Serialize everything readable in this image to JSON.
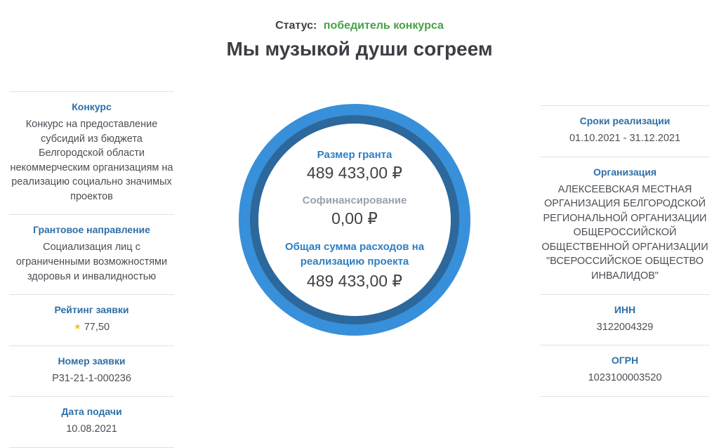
{
  "status": {
    "label": "Статус:",
    "value": "победитель конкурса"
  },
  "title": "Мы музыкой души согреем",
  "left_sidebar": {
    "sections": [
      {
        "heading": "Конкурс",
        "value": "Конкурс на предоставление субсидий из бюджета Белгородской области некоммерческим организациям на реализацию социально значимых проектов"
      },
      {
        "heading": "Грантовое направление",
        "value": "Социализация лиц с ограниченными возможностями здоровья и инвалидностью"
      },
      {
        "heading": "Рейтинг заявки",
        "icon": "star-icon",
        "star_glyph": "★",
        "value": "77,50"
      },
      {
        "heading": "Номер заявки",
        "value": "Р31-21-1-000236"
      },
      {
        "heading": "Дата подачи",
        "value": "10.08.2021"
      }
    ]
  },
  "right_sidebar": {
    "sections": [
      {
        "heading": "Сроки реализации",
        "value": "01.10.2021 - 31.12.2021"
      },
      {
        "heading": "Организация",
        "value": "АЛЕКСЕЕВСКАЯ МЕСТНАЯ ОРГАНИЗАЦИЯ БЕЛГОРОДСКОЙ РЕГИОНАЛЬНОЙ ОРГАНИЗАЦИИ ОБЩЕРОССИЙСКОЙ ОБЩЕСТВЕННОЙ ОРГАНИЗАЦИИ \"ВСЕРОССИЙСКОЕ ОБЩЕСТВО ИНВАЛИДОВ\""
      },
      {
        "heading": "ИНН",
        "value": "3122004329"
      },
      {
        "heading": "ОГРН",
        "value": "1023100003520"
      }
    ]
  },
  "funding_circle": {
    "grant_label": "Размер гранта",
    "grant_value": "489 433,00 ₽",
    "cofinancing_label": "Софинансирование",
    "cofinancing_value": "0,00 ₽",
    "total_label": "Общая сумма расходов на реализацию проекта",
    "total_value": "489 433,00 ₽"
  },
  "colors": {
    "heading_blue": "#2e6fa8",
    "status_green": "#46a246",
    "ring_outer_blue": "#3790d9",
    "ring_inner_blue": "#2d689c",
    "star_gold": "#f2c230",
    "divider_gray": "#dfe1e3"
  }
}
